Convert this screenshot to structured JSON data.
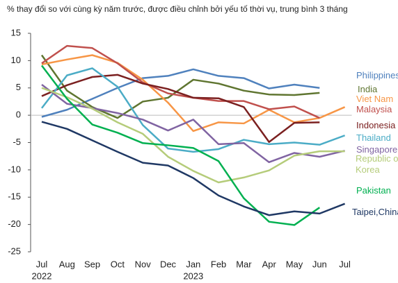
{
  "chart_data": {
    "type": "line",
    "title": "% thay đổi so với cùng kỳ năm trước, được điều chỉnh bởi yếu tố thời vụ, trung bình 3 tháng",
    "categories": [
      "Jul",
      "Aug",
      "Sep",
      "Oct",
      "Nov",
      "Dec",
      "Jan",
      "Feb",
      "Mar",
      "Apr",
      "May",
      "Jun",
      "Jul"
    ],
    "year_labels": [
      "2022",
      null,
      null,
      null,
      null,
      null,
      "2023",
      null,
      null,
      null,
      null,
      null,
      null
    ],
    "ylim": [
      -25,
      15
    ],
    "yticks": [
      -25,
      -20,
      -15,
      -10,
      -5,
      0,
      5,
      10,
      15
    ],
    "grid": false,
    "series": [
      {
        "name": "Philippines",
        "color": "#4f81bd",
        "values": [
          -0.3,
          1,
          3,
          5,
          6.8,
          7.2,
          8.4,
          7.2,
          6.8,
          4.9,
          5.6,
          5.0,
          null
        ]
      },
      {
        "name": "India",
        "color": "#5f7530",
        "values": [
          11,
          4.5,
          1.5,
          -0.5,
          2.5,
          3.2,
          6.5,
          5.8,
          4.5,
          3.8,
          3.7,
          4.1,
          null
        ]
      },
      {
        "name": "Viet Nam",
        "color": "#f79646",
        "values": [
          9.3,
          10.2,
          11.0,
          9.6,
          6.5,
          2.3,
          -2.9,
          -1.3,
          -1.5,
          1.0,
          -1.3,
          -0.5,
          1.5
        ]
      },
      {
        "name": "Malaysia",
        "color": "#c0504d",
        "values": [
          9.5,
          12.7,
          12.3,
          9.5,
          6.0,
          4.0,
          3.2,
          2.6,
          2.6,
          1.1,
          1.6,
          -0.5,
          null
        ]
      },
      {
        "name": "Indonesia",
        "color": "#7b2020",
        "values": [
          3.5,
          5.5,
          7.0,
          7.4,
          5.8,
          4.8,
          3.2,
          3.1,
          1.5,
          -4.9,
          -1.4,
          -1.3,
          null
        ]
      },
      {
        "name": "Thailand",
        "color": "#4bacc6",
        "values": [
          1.3,
          7.3,
          8.6,
          5.2,
          -1.8,
          -6.1,
          -6.7,
          -6.2,
          -4.5,
          -5.3,
          -5.0,
          -5.4,
          -3.7
        ]
      },
      {
        "name": "Singapore",
        "color": "#8064a2",
        "values": [
          5.6,
          2.1,
          1.3,
          0.4,
          -0.8,
          -2.8,
          -0.8,
          -5.3,
          -5.1,
          -8.6,
          -6.9,
          -7.6,
          -6.5
        ]
      },
      {
        "name": "Republic of Korea",
        "color": "#b5cc7a",
        "values": [
          5.0,
          3.3,
          1.2,
          -1.3,
          -3.4,
          -7.6,
          -10.2,
          -12.3,
          -11.4,
          -10.1,
          -7.4,
          -6.6,
          -6.6
        ]
      },
      {
        "name": "Pakistan",
        "color": "#00b050",
        "values": [
          9.1,
          3.0,
          -1.7,
          -3.2,
          -5.1,
          -5.5,
          -6.0,
          -8.4,
          -15.2,
          -19.5,
          -20.1,
          -16.9,
          null
        ]
      },
      {
        "name": "Taipei,China",
        "color": "#1f3864",
        "values": [
          -1.2,
          -2.5,
          -4.6,
          -6.7,
          -8.7,
          -9.2,
          -11.5,
          -14.7,
          -16.7,
          -18.3,
          -17.6,
          -18.0,
          -16.2
        ]
      }
    ]
  }
}
